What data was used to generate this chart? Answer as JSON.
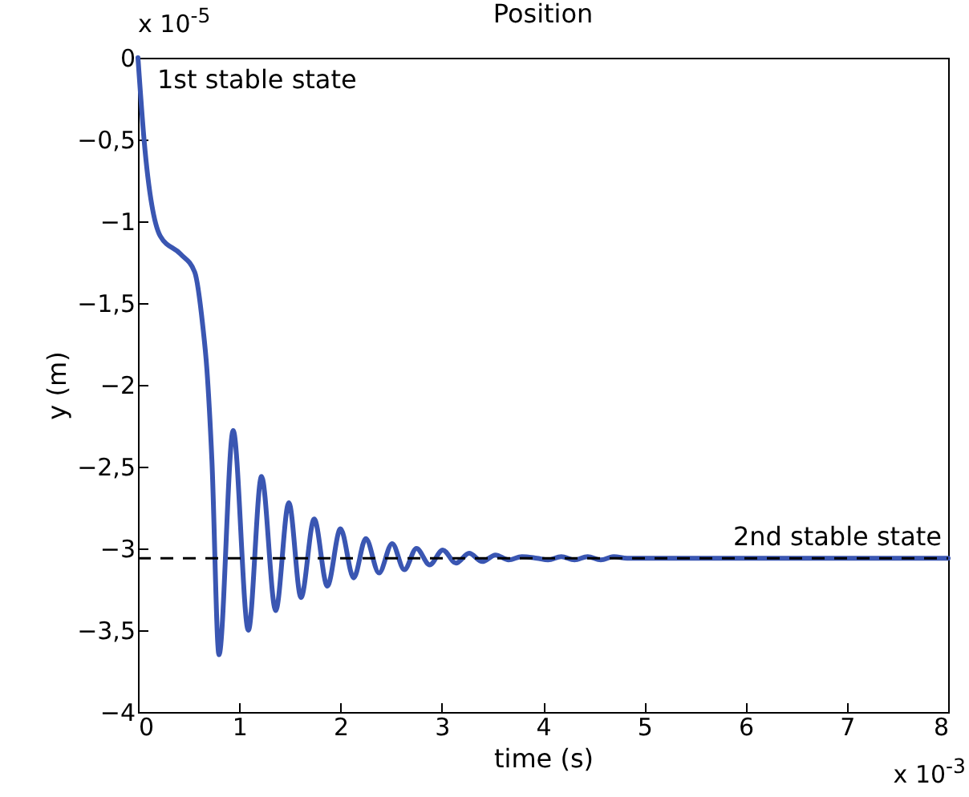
{
  "chart_data": {
    "type": "line",
    "title": "Position",
    "xlabel": "time (s)",
    "ylabel": "y (m)",
    "xlim": [
      0,
      8
    ],
    "ylim": [
      -4,
      0
    ],
    "xticks": [
      0,
      1,
      2,
      3,
      4,
      5,
      6,
      7,
      8
    ],
    "yticks": [
      0,
      {
        "value": -0.5,
        "label": "−0,5"
      },
      {
        "value": -1,
        "label": "−1"
      },
      {
        "value": -1.5,
        "label": "−1,5"
      },
      {
        "value": -2,
        "label": "−2"
      },
      {
        "value": -2.5,
        "label": "−2,5"
      },
      {
        "value": -3,
        "label": "−3"
      },
      {
        "value": -3.5,
        "label": "−3,5"
      },
      {
        "value": -4,
        "label": "−4"
      }
    ],
    "series": [
      {
        "color": "#3a56b2",
        "x": [
          0,
          0.06,
          0.22,
          0.42,
          0.56,
          0.64,
          0.68,
          0.73,
          0.8,
          0.94,
          1.09,
          1.22,
          1.36,
          1.49,
          1.61,
          1.74,
          1.87,
          2.0,
          2.13,
          2.25,
          2.38,
          2.51,
          2.63,
          2.75,
          2.88,
          3.01,
          3.14,
          3.27,
          3.4,
          3.53,
          3.66,
          3.79,
          3.94,
          4.05,
          4.18,
          4.31,
          4.44,
          4.57,
          4.7,
          4.83,
          4.96,
          5.2,
          8
        ],
        "values": [
          0,
          -0.5,
          -1.09,
          -1.2,
          -1.31,
          -1.64,
          -1.9,
          -2.46,
          -3.65,
          -2.28,
          -3.5,
          -2.56,
          -3.38,
          -2.72,
          -3.3,
          -2.82,
          -3.23,
          -2.88,
          -3.18,
          -2.94,
          -3.15,
          -2.97,
          -3.13,
          -3.0,
          -3.1,
          -3.01,
          -3.09,
          -3.03,
          -3.08,
          -3.04,
          -3.07,
          -3.05,
          -3.06,
          -3.07,
          -3.05,
          -3.07,
          -3.05,
          -3.07,
          -3.05,
          -3.06,
          -3.06,
          -3.06,
          -3.06
        ]
      }
    ],
    "ref_lines": [
      {
        "axis": "y",
        "value": -3.06,
        "label": "2nd stable state",
        "color": "#000000",
        "line_style": "dashed"
      }
    ],
    "annotations": [
      "x 10$^{-5}$",
      "x 10$^{-3}$",
      {
        "text": "1st stable state",
        "x": 0,
        "y": 0
      }
    ]
  }
}
